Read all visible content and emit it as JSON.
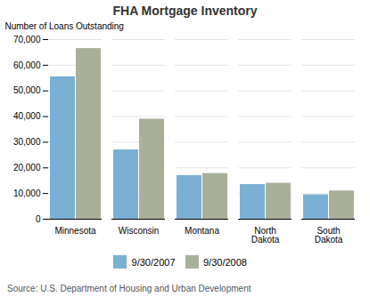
{
  "chart_data": {
    "type": "bar",
    "title": "FHA Mortgage Inventory",
    "ylabel": "Number of Loans Outstanding",
    "caption": "Source: U.S. Department of Housing and Urban Development",
    "categories": [
      "Minnesota",
      "Wisconsin",
      "Montana",
      "North\nDakota",
      "South\nDakota"
    ],
    "series": [
      {
        "name": "9/30/2007",
        "color": "#7ab0d4",
        "values": [
          55500,
          27000,
          17000,
          13500,
          9500
        ]
      },
      {
        "name": "9/30/2008",
        "color": "#a8b09a",
        "values": [
          66500,
          39000,
          17800,
          14000,
          11000
        ]
      }
    ],
    "ylim": [
      0,
      70000
    ],
    "yticks": [
      0,
      {
        "value": 10000,
        "label": "10,000"
      },
      {
        "value": 20000,
        "label": "20,000"
      },
      {
        "value": 30000,
        "label": "30,000"
      },
      {
        "value": 40000,
        "label": "40,000"
      },
      {
        "value": 50000,
        "label": "50,000"
      },
      {
        "value": 60000,
        "label": "60,000"
      },
      {
        "value": 70000,
        "label": "70,000"
      }
    ],
    "grid": true,
    "legend": "bottom"
  }
}
